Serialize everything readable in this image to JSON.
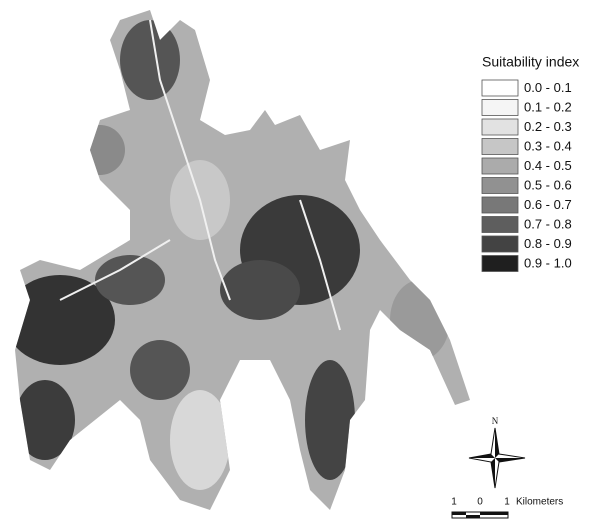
{
  "legend": {
    "title": "Suitability index",
    "items": [
      {
        "label": "0.0 - 0.1",
        "color": "#ffffff"
      },
      {
        "label": "0.1 - 0.2",
        "color": "#f5f5f5"
      },
      {
        "label": "0.2 - 0.3",
        "color": "#e2e2e2"
      },
      {
        "label": "0.3 - 0.4",
        "color": "#c6c6c6"
      },
      {
        "label": "0.4 - 0.5",
        "color": "#ababab"
      },
      {
        "label": "0.5 - 0.6",
        "color": "#919191"
      },
      {
        "label": "0.6 - 0.7",
        "color": "#787878"
      },
      {
        "label": "0.7 - 0.8",
        "color": "#5e5e5e"
      },
      {
        "label": "0.8 - 0.9",
        "color": "#434343"
      },
      {
        "label": "0.9 - 1.0",
        "color": "#1f1f1f"
      }
    ]
  },
  "north_arrow": {
    "label": "N"
  },
  "scale_bar": {
    "labels": [
      "1",
      "0",
      "1"
    ],
    "unit": "Kilometers"
  }
}
